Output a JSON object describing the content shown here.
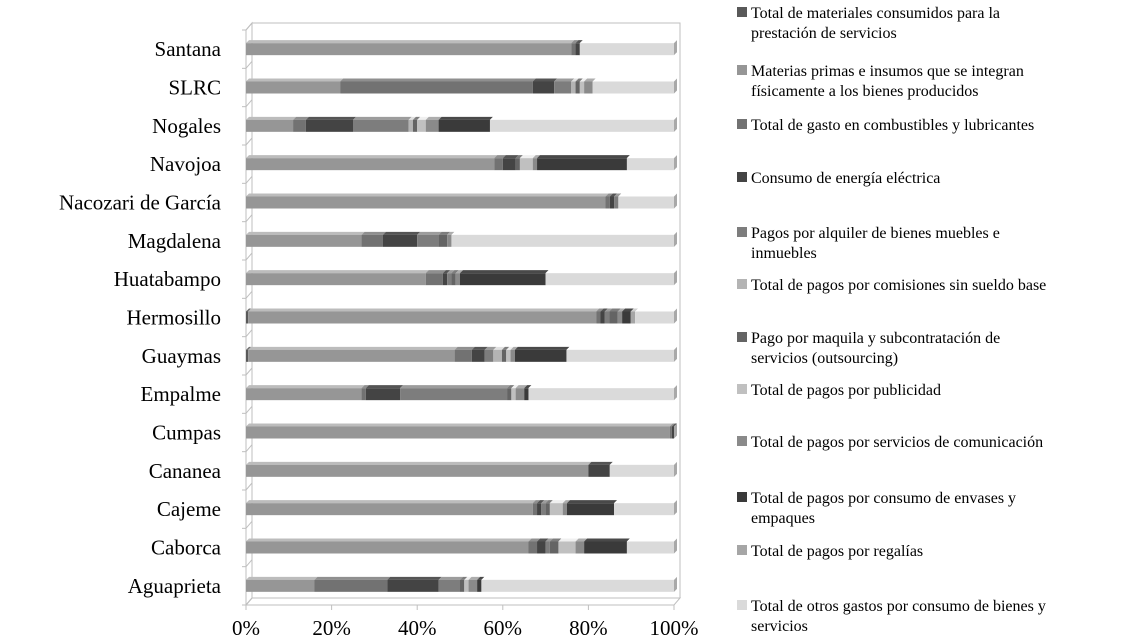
{
  "chart_data": {
    "type": "bar",
    "orientation": "horizontal",
    "stacked": "percent",
    "title": "",
    "xlabel": "",
    "ylabel": "",
    "xlim": [
      0,
      100
    ],
    "x_ticks": [
      "0%",
      "20%",
      "40%",
      "60%",
      "80%",
      "100%"
    ],
    "grid": false,
    "legend_position": "right",
    "categories": [
      "Santana",
      "SLRC",
      "Nogales",
      "Navojoa",
      "Nacozari de García",
      "Magdalena",
      "Huatabampo",
      "Hermosillo",
      "Guaymas",
      "Empalme",
      "Cumpas",
      "Cananea",
      "Cajeme",
      "Caborca",
      "Aguaprieta"
    ],
    "series": [
      {
        "name": "Total de materiales consumidos para la prestación de servicios",
        "color": "#595959",
        "values": [
          0,
          0,
          0,
          0,
          0,
          0,
          0,
          0.5,
          0.5,
          0,
          0,
          0,
          0,
          0,
          0
        ]
      },
      {
        "name": "Materias primas e insumos que se integran físicamente a los bienes producidos",
        "color": "#969696",
        "values": [
          76,
          22,
          11,
          58,
          84,
          27,
          42,
          80.5,
          48,
          27,
          99,
          80,
          67,
          66,
          16
        ]
      },
      {
        "name": "Total de gasto en combustibles y lubricantes",
        "color": "#727272",
        "values": [
          1,
          45,
          3,
          2,
          1,
          5,
          4,
          1,
          4,
          1,
          0.5,
          0,
          1,
          2,
          17
        ]
      },
      {
        "name": "Consumo de energía eléctrica",
        "color": "#444444",
        "values": [
          1,
          5,
          11,
          3,
          1,
          8,
          1,
          1,
          3,
          8,
          0.5,
          5,
          1,
          2,
          12
        ]
      },
      {
        "name": "Pagos por alquiler de bienes muebles e inmuebles",
        "color": "#7d7d7d",
        "values": [
          0,
          4,
          13,
          0,
          1,
          5,
          1,
          1,
          2,
          25,
          0,
          0,
          1,
          1,
          5
        ]
      },
      {
        "name": "Total de pagos por comisiones sin sueldo base",
        "color": "#b4b4b4",
        "values": [
          0,
          1,
          1,
          0,
          0,
          0,
          0,
          0,
          2,
          0,
          0,
          0,
          0,
          0,
          0
        ]
      },
      {
        "name": "Pago por maquila y subcontratación de servicios (outsourcing)",
        "color": "#646464",
        "values": [
          0,
          1,
          1,
          1,
          0,
          2,
          1,
          2,
          1,
          1,
          0,
          0,
          1,
          2,
          1
        ]
      },
      {
        "name": "Total de pagos por publicidad",
        "color": "#c0c0c0",
        "values": [
          0,
          1,
          2,
          3,
          0,
          0,
          0,
          0,
          1,
          1,
          0,
          0,
          3,
          4,
          1
        ]
      },
      {
        "name": "Total de pagos por servicios de comunicación",
        "color": "#8a8a8a",
        "values": [
          0,
          2,
          3,
          1,
          0,
          1,
          1,
          1,
          1,
          2,
          0,
          0,
          1,
          2,
          2
        ]
      },
      {
        "name": "Total de pagos por consumo de envases y empaques",
        "color": "#3a3a3a",
        "values": [
          0,
          0,
          12,
          21,
          0,
          0,
          20,
          2,
          12,
          1,
          0,
          0,
          11,
          10,
          1
        ]
      },
      {
        "name": "Total de pagos por regalías",
        "color": "#a6a6a6",
        "values": [
          0,
          0,
          0,
          0,
          0,
          0,
          0,
          1,
          0,
          0,
          0,
          0,
          0,
          0,
          0
        ]
      },
      {
        "name": "Total de otros gastos por consumo de bienes y servicios",
        "color": "#dadada",
        "values": [
          22,
          19,
          43,
          11,
          13,
          52,
          30,
          9,
          25,
          34,
          0,
          15,
          14,
          11,
          45
        ]
      }
    ]
  }
}
